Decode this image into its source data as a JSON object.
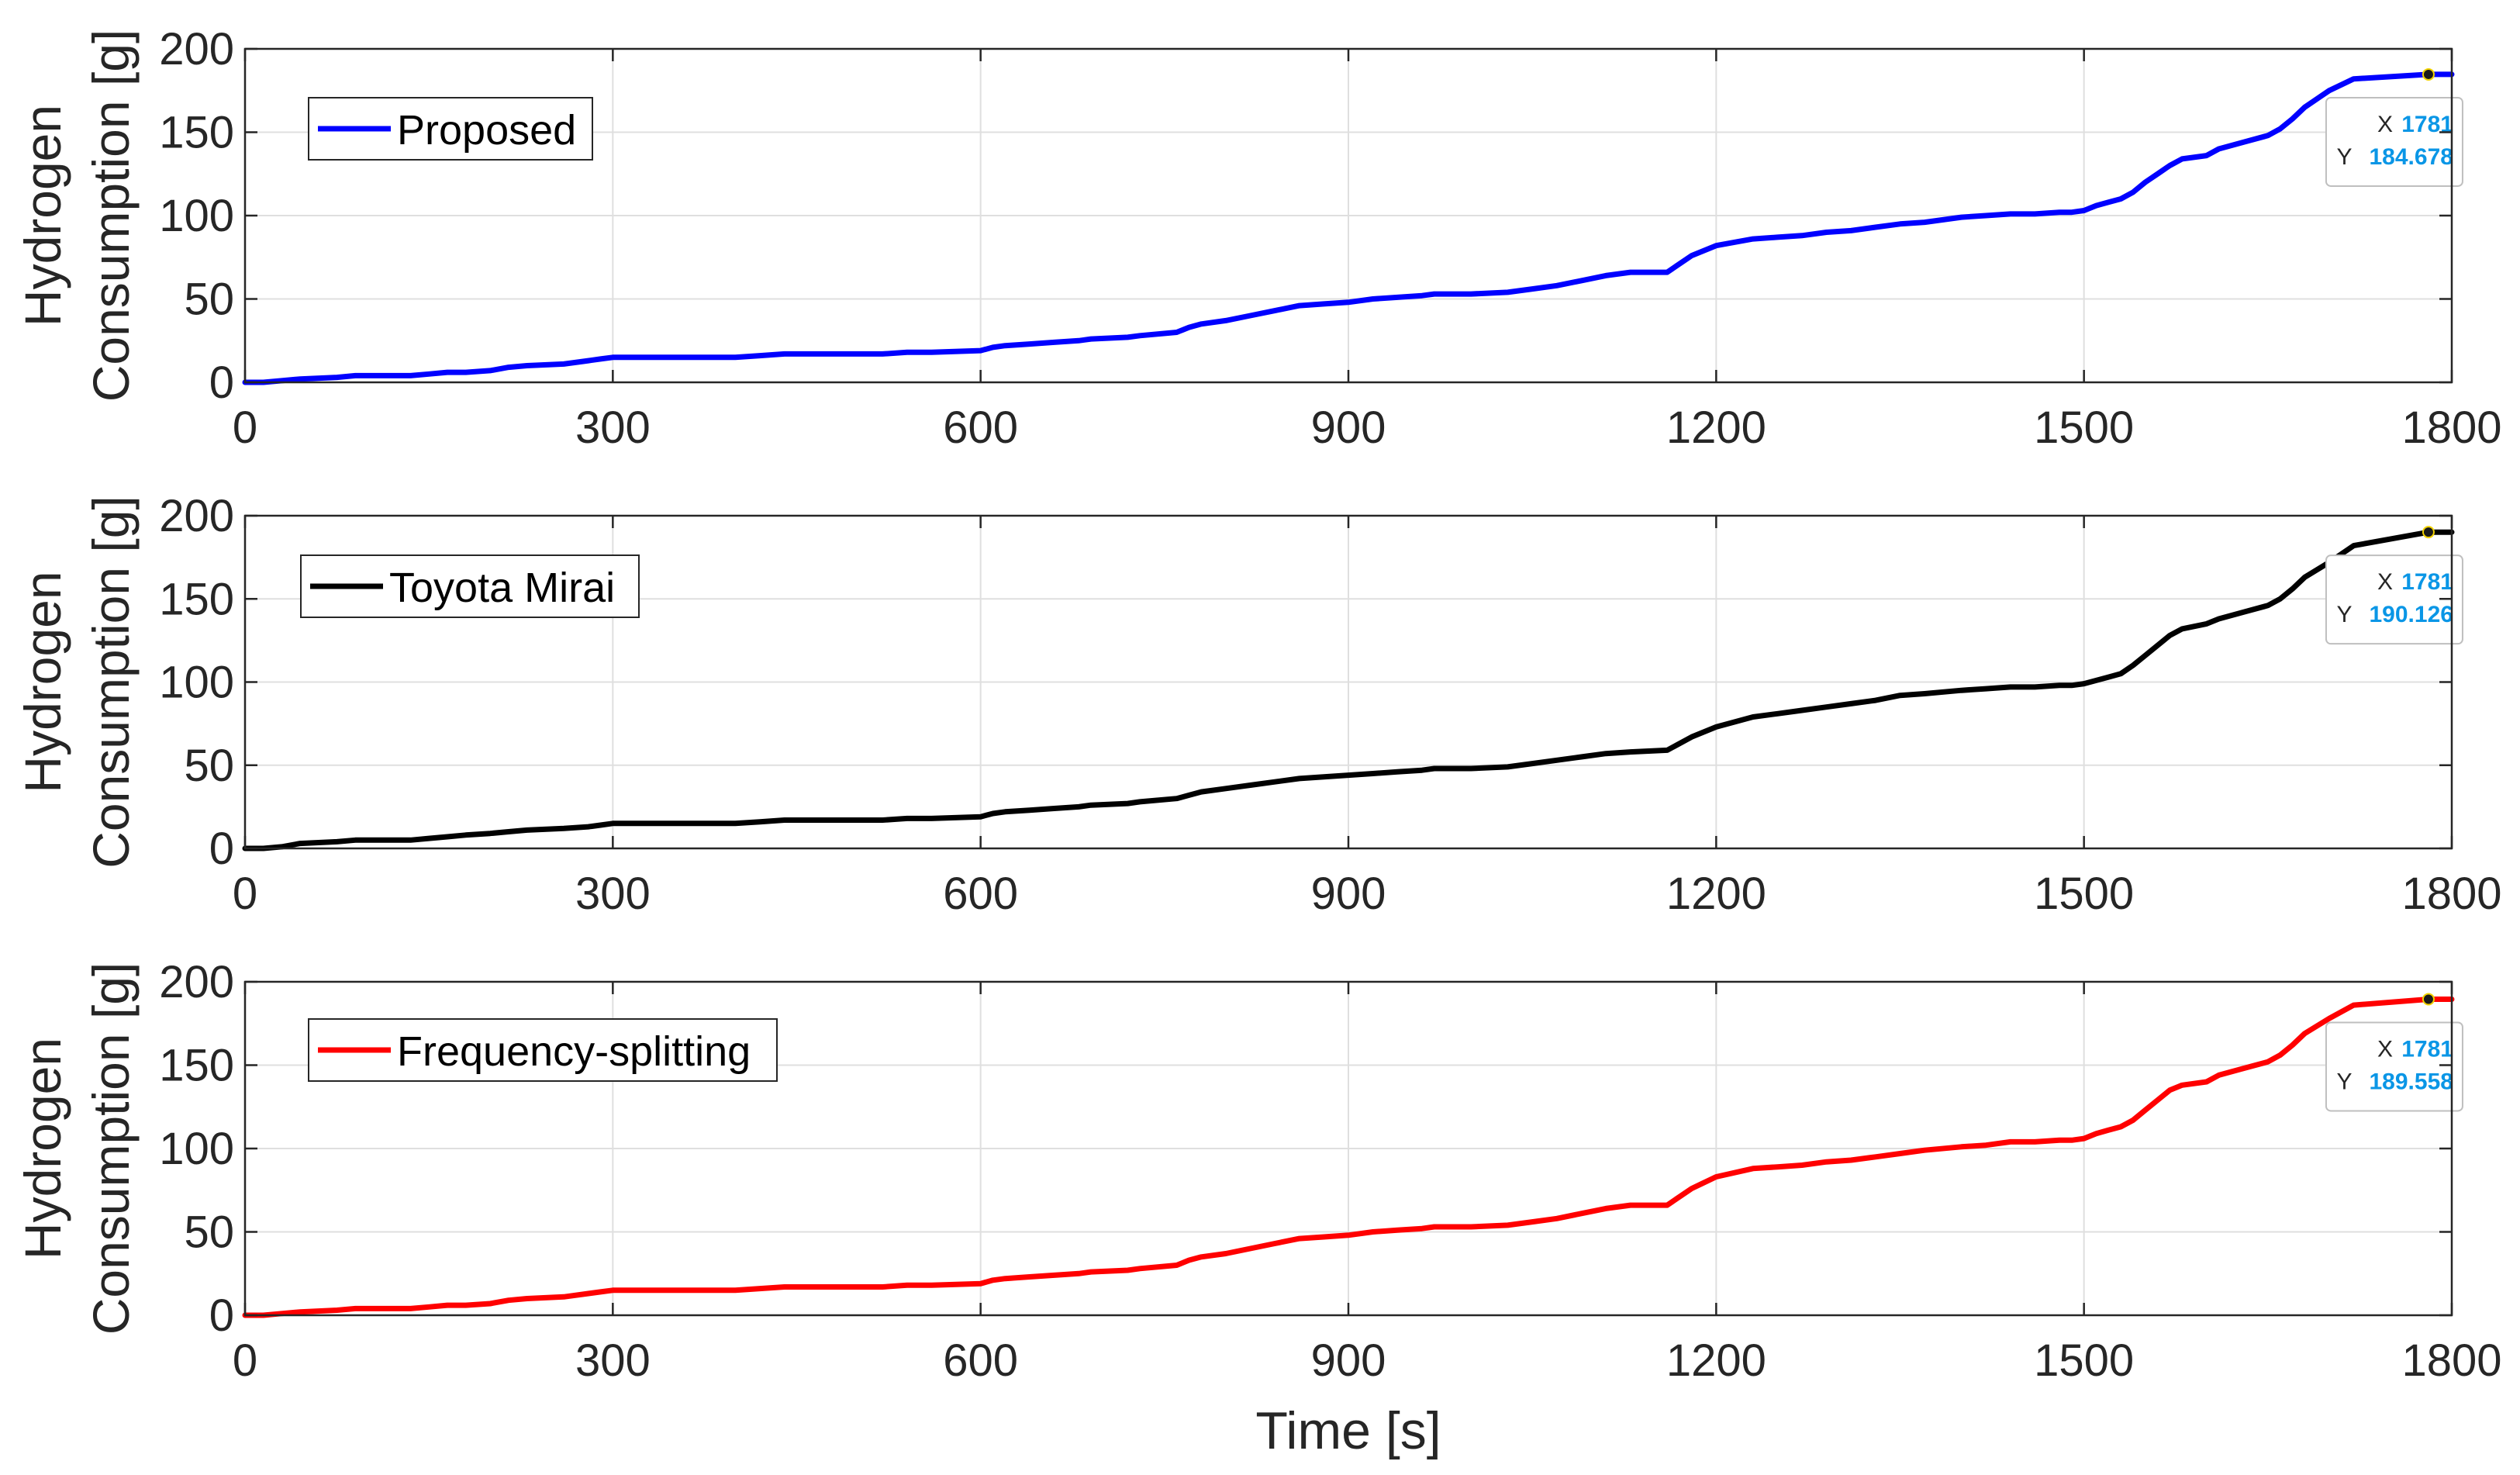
{
  "figure": {
    "shared_xlabel": "Time [s]",
    "colors": {
      "axis": "#262626",
      "grid": "#dfdfdf",
      "datatip_bg": "#ffffff",
      "datatip_border": "#bfbfbf",
      "datatip_label": "#262626",
      "datatip_value": "#0a96e6",
      "datatip_marker": "#1a1a1a"
    }
  },
  "chart_data": [
    {
      "type": "line",
      "title": "",
      "xlabel": "",
      "ylabel": [
        "Hydrogen",
        "Consumption [g]"
      ],
      "xlim": [
        0,
        1800
      ],
      "ylim": [
        0,
        200
      ],
      "xticks": [
        0,
        300,
        600,
        900,
        1200,
        1500,
        1800
      ],
      "yticks": [
        0,
        50,
        100,
        150,
        200
      ],
      "xtick_labels": [
        "0",
        "300",
        "600",
        "900",
        "1200",
        "1500",
        "1800"
      ],
      "ytick_labels": [
        "0",
        "50",
        "100",
        "150",
        "200"
      ],
      "grid": true,
      "legend_position": "top-left",
      "series": [
        {
          "name": "Proposed",
          "color": "#0000ff",
          "x": [
            0,
            15,
            30,
            45,
            75,
            90,
            135,
            150,
            165,
            180,
            200,
            215,
            230,
            260,
            280,
            290,
            300,
            400,
            420,
            440,
            500,
            520,
            540,
            560,
            600,
            610,
            620,
            640,
            660,
            680,
            690,
            720,
            730,
            760,
            770,
            780,
            800,
            820,
            840,
            860,
            880,
            900,
            920,
            940,
            960,
            970,
            1000,
            1030,
            1050,
            1070,
            1090,
            1110,
            1130,
            1160,
            1180,
            1200,
            1230,
            1250,
            1270,
            1290,
            1310,
            1330,
            1350,
            1370,
            1400,
            1420,
            1440,
            1460,
            1480,
            1490,
            1500,
            1510,
            1520,
            1530,
            1540,
            1550,
            1560,
            1570,
            1580,
            1600,
            1610,
            1630,
            1650,
            1660,
            1670,
            1680,
            1700,
            1720,
            1781,
            1800
          ],
          "y": [
            0,
            0,
            1,
            2,
            3,
            4,
            4,
            5,
            6,
            6,
            7,
            9,
            10,
            11,
            13,
            14,
            15,
            15,
            16,
            17,
            17,
            17,
            18,
            18,
            19,
            21,
            22,
            23,
            24,
            25,
            26,
            27,
            28,
            30,
            33,
            35,
            37,
            40,
            43,
            46,
            47,
            48,
            50,
            51,
            52,
            53,
            53,
            54,
            56,
            58,
            61,
            64,
            66,
            66,
            76,
            82,
            86,
            87,
            88,
            90,
            91,
            93,
            95,
            96,
            99,
            100,
            101,
            101,
            102,
            102,
            103,
            106,
            108,
            110,
            114,
            120,
            125,
            130,
            134,
            136,
            140,
            144,
            148,
            152,
            158,
            165,
            175,
            182,
            184.678,
            184.678
          ],
          "datatip": {
            "x_label": "X",
            "y_label": "Y",
            "x": "1781",
            "y": "184.678"
          }
        }
      ]
    },
    {
      "type": "line",
      "title": "",
      "xlabel": "",
      "ylabel": [
        "Hydrogen",
        "Consumption [g]"
      ],
      "xlim": [
        0,
        1800
      ],
      "ylim": [
        0,
        200
      ],
      "xticks": [
        0,
        300,
        600,
        900,
        1200,
        1500,
        1800
      ],
      "yticks": [
        0,
        50,
        100,
        150,
        200
      ],
      "xtick_labels": [
        "0",
        "300",
        "600",
        "900",
        "1200",
        "1500",
        "1800"
      ],
      "ytick_labels": [
        "0",
        "50",
        "100",
        "150",
        "200"
      ],
      "grid": true,
      "legend_position": "top-left",
      "series": [
        {
          "name": "Toyota Mirai",
          "color": "#000000",
          "x": [
            0,
            15,
            30,
            45,
            75,
            90,
            135,
            150,
            165,
            180,
            200,
            215,
            230,
            260,
            280,
            290,
            300,
            400,
            420,
            440,
            500,
            520,
            540,
            560,
            600,
            610,
            620,
            640,
            660,
            680,
            690,
            720,
            730,
            760,
            770,
            780,
            800,
            820,
            840,
            860,
            880,
            900,
            920,
            940,
            960,
            970,
            1000,
            1030,
            1050,
            1070,
            1090,
            1110,
            1130,
            1160,
            1180,
            1200,
            1230,
            1250,
            1270,
            1290,
            1310,
            1330,
            1350,
            1370,
            1400,
            1420,
            1440,
            1460,
            1480,
            1490,
            1500,
            1510,
            1520,
            1530,
            1540,
            1550,
            1560,
            1570,
            1580,
            1600,
            1610,
            1630,
            1650,
            1660,
            1670,
            1680,
            1700,
            1720,
            1781,
            1800
          ],
          "y": [
            0,
            0,
            1,
            3,
            4,
            5,
            5,
            6,
            7,
            8,
            9,
            10,
            11,
            12,
            13,
            14,
            15,
            15,
            16,
            17,
            17,
            17,
            18,
            18,
            19,
            21,
            22,
            23,
            24,
            25,
            26,
            27,
            28,
            30,
            32,
            34,
            36,
            38,
            40,
            42,
            43,
            44,
            45,
            46,
            47,
            48,
            48,
            49,
            51,
            53,
            55,
            57,
            58,
            59,
            67,
            73,
            79,
            81,
            83,
            85,
            87,
            89,
            92,
            93,
            95,
            96,
            97,
            97,
            98,
            98,
            99,
            101,
            103,
            105,
            110,
            116,
            122,
            128,
            132,
            135,
            138,
            142,
            146,
            150,
            156,
            163,
            172,
            182,
            190.126,
            190.126
          ],
          "datatip": {
            "x_label": "X",
            "y_label": "Y",
            "x": "1781",
            "y": "190.126"
          }
        }
      ]
    },
    {
      "type": "line",
      "title": "",
      "xlabel": "Time [s]",
      "ylabel": [
        "Hydrogen",
        "Consumption [g]"
      ],
      "xlim": [
        0,
        1800
      ],
      "ylim": [
        0,
        200
      ],
      "xticks": [
        0,
        300,
        600,
        900,
        1200,
        1500,
        1800
      ],
      "yticks": [
        0,
        50,
        100,
        150,
        200
      ],
      "xtick_labels": [
        "0",
        "300",
        "600",
        "900",
        "1200",
        "1500",
        "1800"
      ],
      "ytick_labels": [
        "0",
        "50",
        "100",
        "150",
        "200"
      ],
      "grid": true,
      "legend_position": "top-left",
      "series": [
        {
          "name": "Frequency-splitting",
          "color": "#ff0000",
          "x": [
            0,
            15,
            30,
            45,
            75,
            90,
            135,
            150,
            165,
            180,
            200,
            215,
            230,
            260,
            280,
            290,
            300,
            400,
            420,
            440,
            500,
            520,
            540,
            560,
            600,
            610,
            620,
            640,
            660,
            680,
            690,
            720,
            730,
            760,
            770,
            780,
            800,
            820,
            840,
            860,
            880,
            900,
            920,
            940,
            960,
            970,
            1000,
            1030,
            1050,
            1070,
            1090,
            1110,
            1130,
            1160,
            1180,
            1200,
            1230,
            1250,
            1270,
            1290,
            1310,
            1330,
            1350,
            1370,
            1400,
            1420,
            1440,
            1460,
            1480,
            1490,
            1500,
            1510,
            1520,
            1530,
            1540,
            1550,
            1560,
            1570,
            1580,
            1600,
            1610,
            1630,
            1650,
            1660,
            1670,
            1680,
            1700,
            1720,
            1781,
            1800
          ],
          "y": [
            0,
            0,
            1,
            2,
            3,
            4,
            4,
            5,
            6,
            6,
            7,
            9,
            10,
            11,
            13,
            14,
            15,
            15,
            16,
            17,
            17,
            17,
            18,
            18,
            19,
            21,
            22,
            23,
            24,
            25,
            26,
            27,
            28,
            30,
            33,
            35,
            37,
            40,
            43,
            46,
            47,
            48,
            50,
            51,
            52,
            53,
            53,
            54,
            56,
            58,
            61,
            64,
            66,
            66,
            76,
            83,
            88,
            89,
            90,
            92,
            93,
            95,
            97,
            99,
            101,
            102,
            104,
            104,
            105,
            105,
            106,
            109,
            111,
            113,
            117,
            123,
            129,
            135,
            138,
            140,
            144,
            148,
            152,
            156,
            162,
            169,
            178,
            186,
            189.558,
            189.558
          ],
          "datatip": {
            "x_label": "X",
            "y_label": "Y",
            "x": "1781",
            "y": "189.558"
          }
        }
      ]
    }
  ]
}
